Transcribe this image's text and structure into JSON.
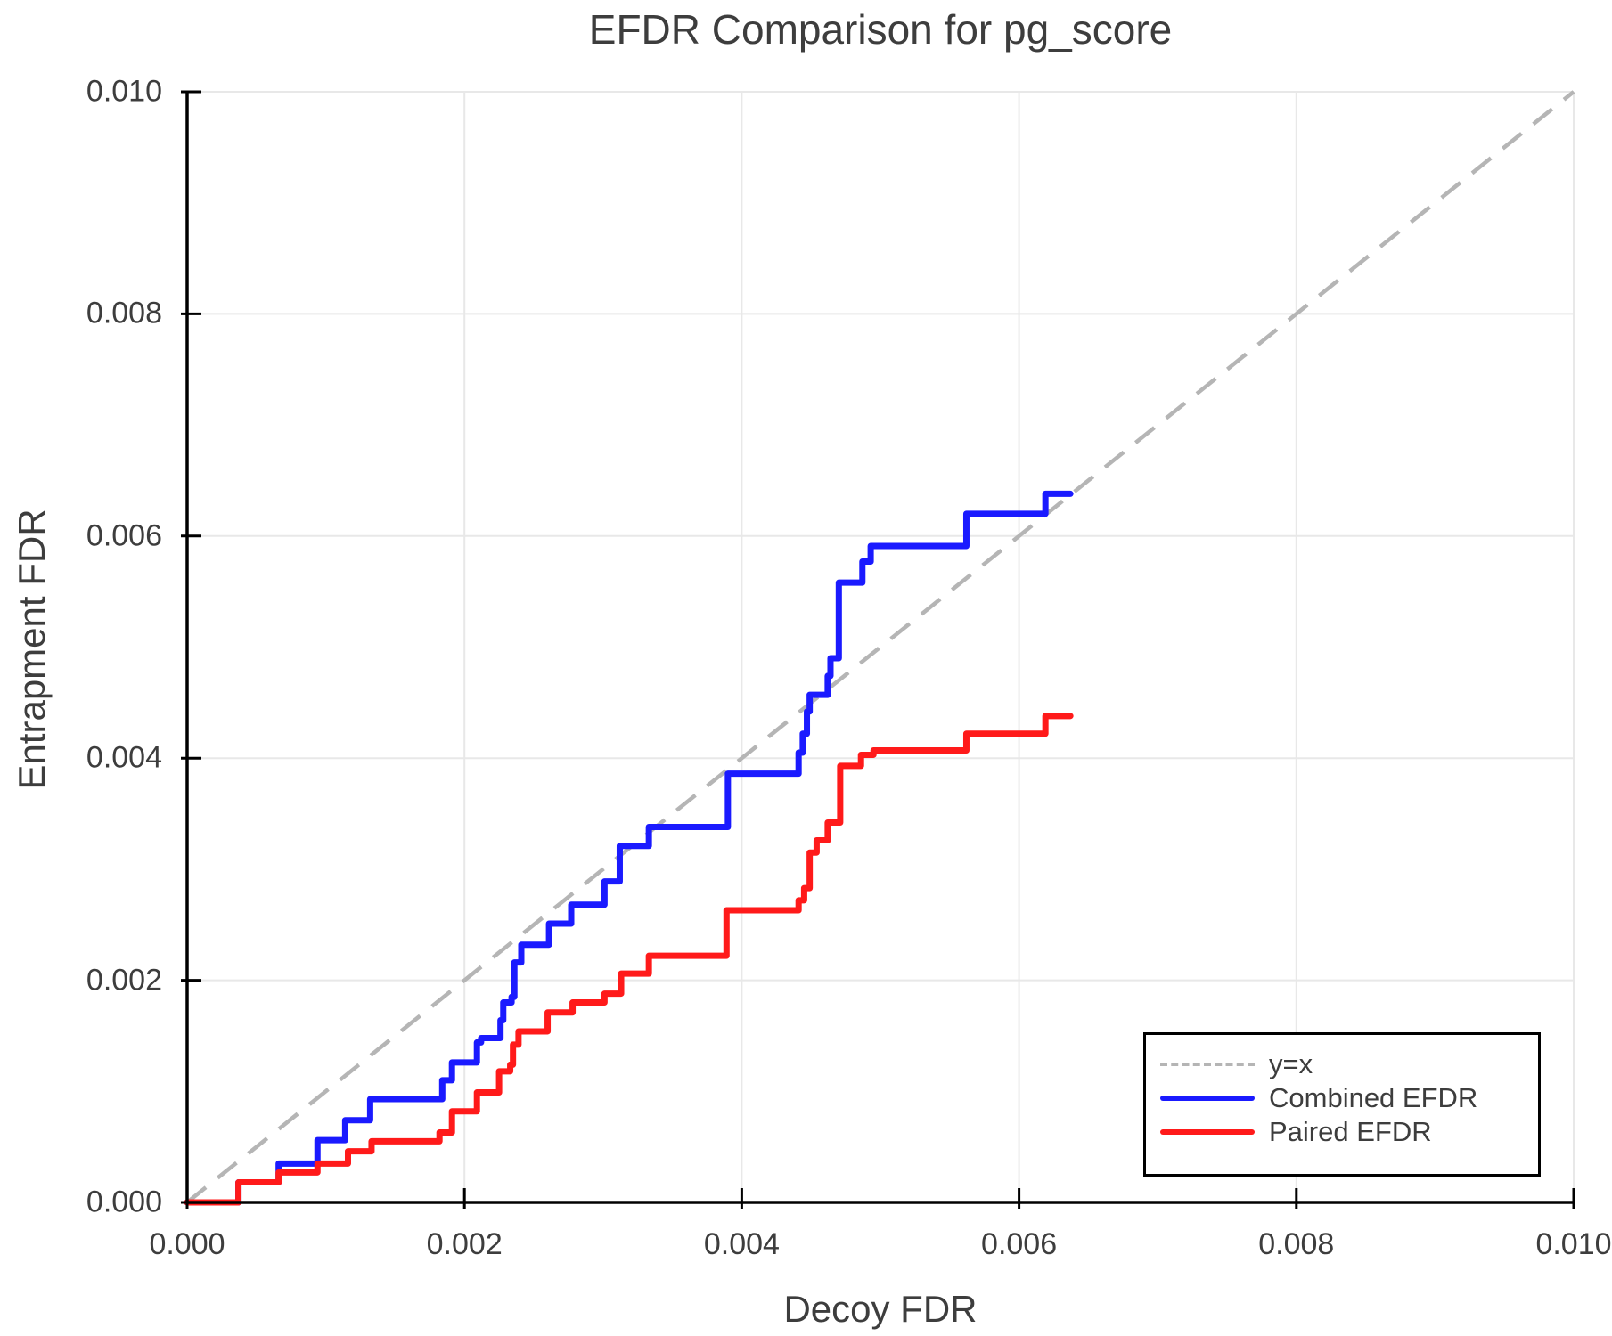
{
  "title": "EFDR Comparison for pg_score",
  "axes": {
    "x_label": "Decoy FDR",
    "y_label": "Entrapment FDR",
    "x_tick_labels": [
      "0.000",
      "0.002",
      "0.004",
      "0.006",
      "0.008",
      "0.010"
    ],
    "y_tick_labels": [
      "0.000",
      "0.002",
      "0.004",
      "0.006",
      "0.008",
      "0.010"
    ]
  },
  "legend": {
    "entries": [
      {
        "label": "y=x",
        "color": "#b5b5b5",
        "style": "dashed"
      },
      {
        "label": "Combined EFDR",
        "color": "#1a1aff",
        "style": "solid"
      },
      {
        "label": "Paired EFDR",
        "color": "#ff1a1a",
        "style": "solid"
      }
    ],
    "position": "lower right"
  },
  "colors": {
    "background": "#ffffff",
    "grid": "#e8e8e8",
    "spine": "#000000",
    "text": "#3d3d3d",
    "diagonal": "#b5b5b5",
    "combined": "#1a1aff",
    "paired": "#ff1a1a"
  },
  "chart_data": {
    "type": "line",
    "title": "EFDR Comparison for pg_score",
    "xlabel": "Decoy FDR",
    "ylabel": "Entrapment FDR",
    "xlim": [
      0,
      0.01
    ],
    "ylim": [
      0,
      0.01
    ],
    "x_ticks": [
      0,
      0.002,
      0.004,
      0.006,
      0.008,
      0.01
    ],
    "y_ticks": [
      0,
      0.002,
      0.004,
      0.006,
      0.008,
      0.01
    ],
    "grid": true,
    "legend_position": "lower right",
    "series": [
      {
        "name": "y=x",
        "color": "#b5b5b5",
        "style": "dashed",
        "step": null,
        "points": [
          [
            0,
            0
          ],
          [
            0.01,
            0.01
          ]
        ]
      },
      {
        "name": "Combined EFDR",
        "color": "#1a1aff",
        "style": "solid",
        "step": "post",
        "points": [
          [
            0.0,
            0.0
          ],
          [
            0.00037,
            0.00018
          ],
          [
            0.00066,
            0.00035
          ],
          [
            0.00094,
            0.00056
          ],
          [
            0.00114,
            0.00074
          ],
          [
            0.00132,
            0.00093
          ],
          [
            0.00184,
            0.0011
          ],
          [
            0.00191,
            0.00126
          ],
          [
            0.00209,
            0.00144
          ],
          [
            0.00212,
            0.00148
          ],
          [
            0.00226,
            0.00164
          ],
          [
            0.00228,
            0.0018
          ],
          [
            0.00234,
            0.00185
          ],
          [
            0.00236,
            0.00216
          ],
          [
            0.00241,
            0.00232
          ],
          [
            0.00261,
            0.00251
          ],
          [
            0.00277,
            0.00268
          ],
          [
            0.00301,
            0.00289
          ],
          [
            0.00312,
            0.00321
          ],
          [
            0.00333,
            0.00338
          ],
          [
            0.0039,
            0.00386
          ],
          [
            0.00441,
            0.00405
          ],
          [
            0.00444,
            0.00422
          ],
          [
            0.00447,
            0.00442
          ],
          [
            0.00449,
            0.00457
          ],
          [
            0.00462,
            0.00474
          ],
          [
            0.00464,
            0.0049
          ],
          [
            0.0047,
            0.00558
          ],
          [
            0.00487,
            0.00577
          ],
          [
            0.00493,
            0.00591
          ],
          [
            0.00562,
            0.0062
          ],
          [
            0.00619,
            0.00638
          ],
          [
            0.00637,
            0.00638
          ]
        ]
      },
      {
        "name": "Paired EFDR",
        "color": "#ff1a1a",
        "style": "solid",
        "step": "post",
        "points": [
          [
            0.0,
            0.0
          ],
          [
            0.00037,
            0.00018
          ],
          [
            0.00066,
            0.00027
          ],
          [
            0.00094,
            0.00035
          ],
          [
            0.00116,
            0.00046
          ],
          [
            0.00133,
            0.00055
          ],
          [
            0.00182,
            0.00063
          ],
          [
            0.00191,
            0.00082
          ],
          [
            0.00209,
            0.00099
          ],
          [
            0.00225,
            0.00118
          ],
          [
            0.00233,
            0.00124
          ],
          [
            0.00235,
            0.00142
          ],
          [
            0.00239,
            0.00154
          ],
          [
            0.0026,
            0.00171
          ],
          [
            0.00278,
            0.0018
          ],
          [
            0.00301,
            0.00188
          ],
          [
            0.00313,
            0.00206
          ],
          [
            0.00333,
            0.00222
          ],
          [
            0.00389,
            0.00263
          ],
          [
            0.00441,
            0.00272
          ],
          [
            0.00445,
            0.00283
          ],
          [
            0.00449,
            0.00315
          ],
          [
            0.00454,
            0.00326
          ],
          [
            0.00462,
            0.00342
          ],
          [
            0.00471,
            0.00393
          ],
          [
            0.00486,
            0.00403
          ],
          [
            0.00495,
            0.00407
          ],
          [
            0.00562,
            0.00422
          ],
          [
            0.00619,
            0.00438
          ],
          [
            0.00637,
            0.00438
          ]
        ]
      }
    ]
  }
}
